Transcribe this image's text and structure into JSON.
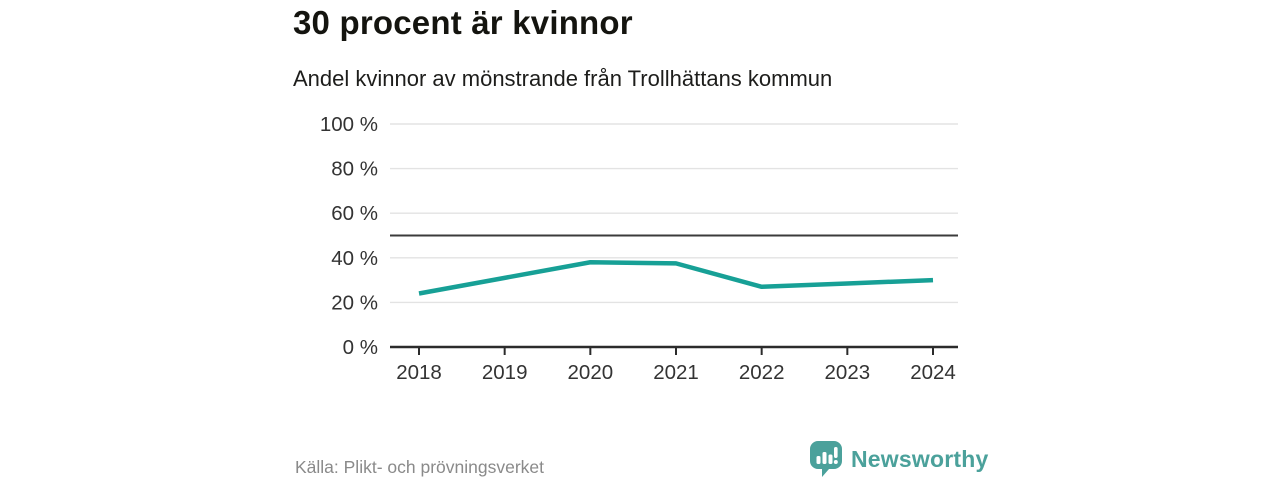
{
  "header": {
    "title": "30 procent är kvinnor",
    "subtitle": "Andel kvinnor av mönstrande från Trollhättans kommun"
  },
  "chart_data": {
    "type": "line",
    "title": "30 procent är kvinnor",
    "subtitle": "Andel kvinnor av mönstrande från Trollhättans kommun",
    "x": [
      2018,
      2019,
      2020,
      2021,
      2022,
      2023,
      2024
    ],
    "series": [
      {
        "name": "Andel kvinnor av mönstrande",
        "values": [
          24,
          31,
          38,
          37.5,
          27,
          28.5,
          30
        ]
      }
    ],
    "unit": "%",
    "ylim": [
      0,
      100
    ],
    "yticks": [
      0,
      20,
      40,
      60,
      80,
      100
    ],
    "ytick_suffix": " %",
    "reference_line": 50,
    "grid": true,
    "legend": "none",
    "colors": {
      "line": "#17A096",
      "grid": "#E3E3E3",
      "reference": "#3B3B3B",
      "axis": "#2B2B2B",
      "tick_label": "#333333"
    }
  },
  "footer": {
    "source": "Källa: Plikt- och prövningsverket",
    "brand": "Newsworthy",
    "brand_color": "#4BA19B"
  }
}
